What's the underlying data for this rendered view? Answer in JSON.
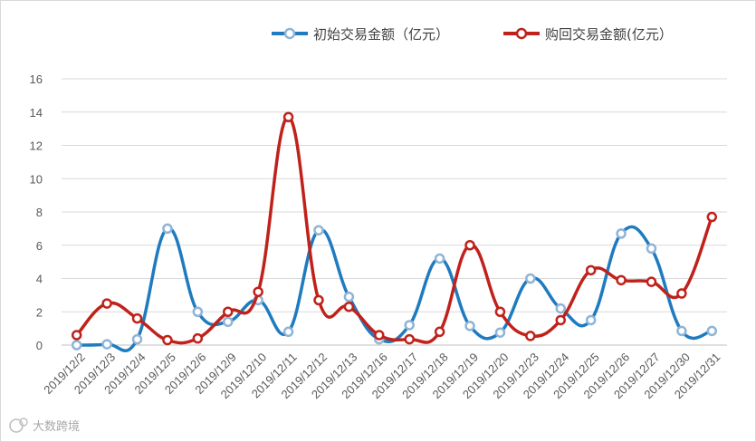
{
  "chart_data": {
    "type": "line",
    "title": "",
    "xlabel": "",
    "ylabel": "",
    "ylim": [
      0,
      16
    ],
    "yticks": [
      "0",
      "2",
      "4",
      "6",
      "8",
      "10",
      "12",
      "14",
      "16"
    ],
    "grid": true,
    "legend_position": "top-right",
    "categories": [
      "2019/12/2",
      "2019/12/3",
      "2019/12/4",
      "2019/12/5",
      "2019/12/6",
      "2019/12/9",
      "2019/12/10",
      "2019/12/11",
      "2019/12/12",
      "2019/12/13",
      "2019/12/16",
      "2019/12/17",
      "2019/12/18",
      "2019/12/19",
      "2019/12/20",
      "2019/12/23",
      "2019/12/24",
      "2019/12/25",
      "2019/12/26",
      "2019/12/27",
      "2019/12/30",
      "2019/12/31"
    ],
    "series": [
      {
        "name": "初始交易金额（亿元）",
        "color": "#1f7bbf",
        "values": [
          0.0,
          0.05,
          0.35,
          7.0,
          2.0,
          1.4,
          2.7,
          0.8,
          6.9,
          2.9,
          0.35,
          1.2,
          5.2,
          1.15,
          0.75,
          4.0,
          2.2,
          1.5,
          6.7,
          5.8,
          0.85,
          0.85
        ]
      },
      {
        "name": "购回交易金额(亿元）",
        "color": "#c0221b",
        "values": [
          0.6,
          2.5,
          1.6,
          0.3,
          0.4,
          2.0,
          3.2,
          13.7,
          2.7,
          2.3,
          0.6,
          0.35,
          0.8,
          6.0,
          2.0,
          0.55,
          1.5,
          4.5,
          3.9,
          3.8,
          3.1,
          7.7
        ]
      }
    ]
  },
  "watermark": {
    "icon": "brand-logo-icon",
    "text": "大数跨境"
  }
}
